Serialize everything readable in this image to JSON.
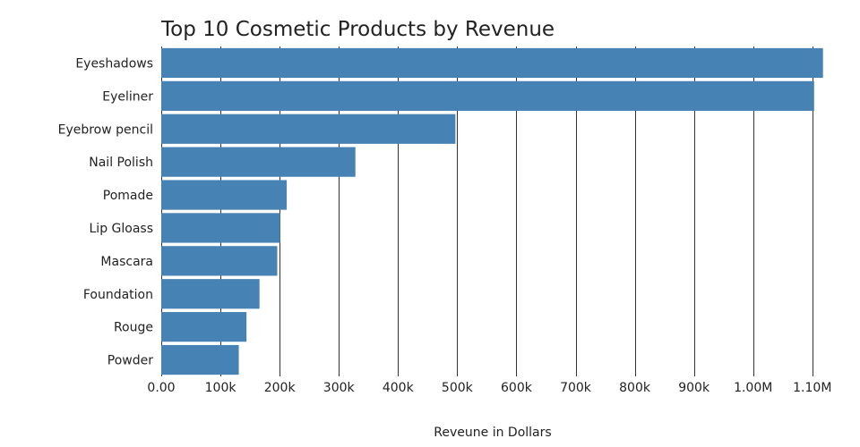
{
  "chart_data": {
    "type": "bar",
    "orientation": "horizontal",
    "title": "Top 10 Cosmetic Products by Revenue",
    "xlabel": "Reveune in Dollars",
    "ylabel": "",
    "categories": [
      "Eyeshadows",
      "Eyeliner",
      "Eyebrow pencil",
      "Nail Polish",
      "Pomade",
      "Lip Gloass",
      "Mascara",
      "Foundation",
      "Rouge",
      "Powder"
    ],
    "values": [
      1118000,
      1103000,
      497000,
      328000,
      212000,
      201000,
      196000,
      166000,
      144000,
      131000
    ],
    "xlim": [
      0,
      1120000
    ],
    "xticks": [
      0,
      100000,
      200000,
      300000,
      400000,
      500000,
      600000,
      700000,
      800000,
      900000,
      1000000,
      1100000
    ],
    "xtick_labels": [
      "0.00",
      "100k",
      "200k",
      "300k",
      "400k",
      "500k",
      "600k",
      "700k",
      "800k",
      "900k",
      "1.00M",
      "1.10M"
    ],
    "grid": true,
    "bar_color": "#4682b4"
  }
}
